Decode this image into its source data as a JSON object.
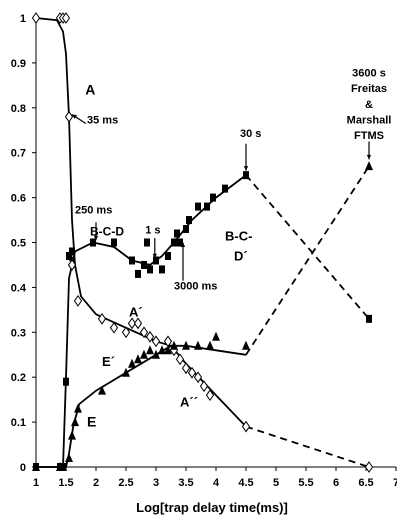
{
  "chart_data": {
    "type": "scatter",
    "title": "",
    "xlabel": "Log[trap delay time(ms)]",
    "ylabel": "",
    "xlim": [
      1,
      7
    ],
    "ylim": [
      0,
      1
    ],
    "x_ticks": [
      "1",
      "1.5",
      "2",
      "2.5",
      "3",
      "3.5",
      "4",
      "4.5",
      "5",
      "5.5",
      "6",
      "6.5",
      "7"
    ],
    "y_ticks": [
      "0",
      "0.1",
      "0.2",
      "0.3",
      "0.4",
      "0.5",
      "0.6",
      "0.7",
      "0.8",
      "0.9",
      "1"
    ],
    "grid": false,
    "series": [
      {
        "label": "A",
        "marker": "diamond-open",
        "points": [
          [
            1.0,
            1.0
          ],
          [
            1.4,
            1.0
          ],
          [
            1.45,
            1.0
          ],
          [
            1.5,
            1.0
          ],
          [
            1.55,
            0.78
          ],
          [
            1.57,
            0.47
          ],
          [
            1.6,
            0.45
          ],
          [
            1.7,
            0.37
          ],
          [
            2.1,
            0.33
          ],
          [
            2.3,
            0.31
          ],
          [
            2.5,
            0.3
          ],
          [
            2.6,
            0.32
          ],
          [
            2.7,
            0.32
          ],
          [
            2.8,
            0.3
          ],
          [
            2.9,
            0.29
          ],
          [
            3.0,
            0.28
          ],
          [
            3.2,
            0.28
          ],
          [
            3.3,
            0.26
          ],
          [
            3.4,
            0.24
          ],
          [
            3.5,
            0.22
          ],
          [
            3.6,
            0.21
          ],
          [
            3.7,
            0.2
          ],
          [
            3.8,
            0.18
          ],
          [
            3.9,
            0.16
          ],
          [
            4.5,
            0.09
          ],
          [
            6.55,
            0.0
          ]
        ],
        "curve_solid": [
          [
            1.0,
            1.0
          ],
          [
            1.35,
            0.995
          ],
          [
            1.45,
            0.97
          ],
          [
            1.5,
            0.92
          ],
          [
            1.55,
            0.78
          ],
          [
            1.6,
            0.55
          ],
          [
            1.65,
            0.45
          ],
          [
            1.75,
            0.38
          ],
          [
            2.0,
            0.34
          ],
          [
            2.5,
            0.31
          ],
          [
            3.0,
            0.28
          ],
          [
            3.25,
            0.27
          ],
          [
            3.5,
            0.23
          ],
          [
            4.0,
            0.16
          ],
          [
            4.5,
            0.09
          ]
        ],
        "curve_dashed": [
          [
            4.5,
            0.09
          ],
          [
            6.55,
            0.0
          ]
        ]
      },
      {
        "label": "B-C-D",
        "marker": "square-filled",
        "points": [
          [
            1.0,
            0.0
          ],
          [
            1.4,
            0.0
          ],
          [
            1.45,
            0.0
          ],
          [
            1.5,
            0.19
          ],
          [
            1.55,
            0.47
          ],
          [
            1.6,
            0.48
          ],
          [
            1.95,
            0.5
          ],
          [
            2.3,
            0.5
          ],
          [
            2.6,
            0.46
          ],
          [
            2.7,
            0.43
          ],
          [
            2.8,
            0.45
          ],
          [
            2.85,
            0.5
          ],
          [
            2.9,
            0.44
          ],
          [
            3.0,
            0.46
          ],
          [
            3.1,
            0.44
          ],
          [
            3.2,
            0.47
          ],
          [
            3.3,
            0.5
          ],
          [
            3.35,
            0.52
          ],
          [
            3.4,
            0.5
          ],
          [
            3.5,
            0.53
          ],
          [
            3.55,
            0.55
          ],
          [
            3.7,
            0.58
          ],
          [
            3.85,
            0.58
          ],
          [
            3.95,
            0.6
          ],
          [
            4.15,
            0.62
          ],
          [
            4.5,
            0.65
          ],
          [
            6.55,
            0.33
          ]
        ],
        "curve_solid": [
          [
            1.0,
            0.0
          ],
          [
            1.45,
            0.0
          ],
          [
            1.5,
            0.2
          ],
          [
            1.55,
            0.42
          ],
          [
            1.65,
            0.48
          ],
          [
            1.95,
            0.5
          ],
          [
            2.3,
            0.49
          ],
          [
            2.6,
            0.46
          ],
          [
            2.9,
            0.45
          ],
          [
            3.1,
            0.47
          ],
          [
            3.3,
            0.5
          ],
          [
            3.6,
            0.55
          ],
          [
            4.0,
            0.6
          ],
          [
            4.5,
            0.65
          ]
        ],
        "curve_dashed": [
          [
            4.5,
            0.65
          ],
          [
            6.55,
            0.33
          ]
        ]
      },
      {
        "label": "E",
        "marker": "triangle-filled",
        "points": [
          [
            1.0,
            0.0
          ],
          [
            1.4,
            0.0
          ],
          [
            1.45,
            0.0
          ],
          [
            1.55,
            0.02
          ],
          [
            1.6,
            0.07
          ],
          [
            1.65,
            0.1
          ],
          [
            1.7,
            0.13
          ],
          [
            2.1,
            0.17
          ],
          [
            2.5,
            0.21
          ],
          [
            2.6,
            0.23
          ],
          [
            2.7,
            0.24
          ],
          [
            2.8,
            0.25
          ],
          [
            2.9,
            0.26
          ],
          [
            3.0,
            0.25
          ],
          [
            3.1,
            0.26
          ],
          [
            3.2,
            0.26
          ],
          [
            3.3,
            0.27
          ],
          [
            3.5,
            0.27
          ],
          [
            3.7,
            0.27
          ],
          [
            3.9,
            0.27
          ],
          [
            4.0,
            0.29
          ],
          [
            4.5,
            0.27
          ],
          [
            6.55,
            0.67
          ]
        ],
        "curve_solid": [
          [
            1.0,
            0.0
          ],
          [
            1.5,
            0.0
          ],
          [
            1.55,
            0.03
          ],
          [
            1.62,
            0.09
          ],
          [
            1.72,
            0.14
          ],
          [
            2.0,
            0.17
          ],
          [
            2.5,
            0.21
          ],
          [
            3.0,
            0.25
          ],
          [
            3.25,
            0.27
          ],
          [
            3.5,
            0.27
          ],
          [
            4.0,
            0.26
          ],
          [
            4.5,
            0.25
          ]
        ],
        "curve_dashed": [
          [
            4.5,
            0.25
          ],
          [
            6.55,
            0.67
          ]
        ]
      }
    ],
    "annotations": [
      {
        "text": "A",
        "x": 1.82,
        "y": 0.83
      },
      {
        "text": "35 ms",
        "x": 1.85,
        "y": 0.765
      },
      {
        "text": "250 ms",
        "x": 1.65,
        "y": 0.565
      },
      {
        "text": "B-C-D",
        "x": 1.9,
        "y": 0.516
      },
      {
        "text": "1 s",
        "x": 2.82,
        "y": 0.52
      },
      {
        "text": "3000 ms",
        "x": 3.3,
        "y": 0.395
      },
      {
        "text": "B-C-",
        "x": 4.15,
        "y": 0.505
      },
      {
        "text": "D´",
        "x": 4.3,
        "y": 0.46
      },
      {
        "text": "30 s",
        "x": 4.4,
        "y": 0.735
      },
      {
        "text": "A´",
        "x": 2.55,
        "y": 0.335
      },
      {
        "text": "E´",
        "x": 2.1,
        "y": 0.225
      },
      {
        "text": "A´´",
        "x": 3.4,
        "y": 0.135
      },
      {
        "text": "E",
        "x": 1.85,
        "y": 0.09
      },
      {
        "text": "3600 s",
        "x": 6.55,
        "y": 0.87
      },
      {
        "text": "Freitas",
        "x": 6.55,
        "y": 0.835
      },
      {
        "text": "&",
        "x": 6.55,
        "y": 0.8
      },
      {
        "text": "Marshall",
        "x": 6.55,
        "y": 0.765
      },
      {
        "text": "FTMS",
        "x": 6.55,
        "y": 0.73
      }
    ]
  }
}
